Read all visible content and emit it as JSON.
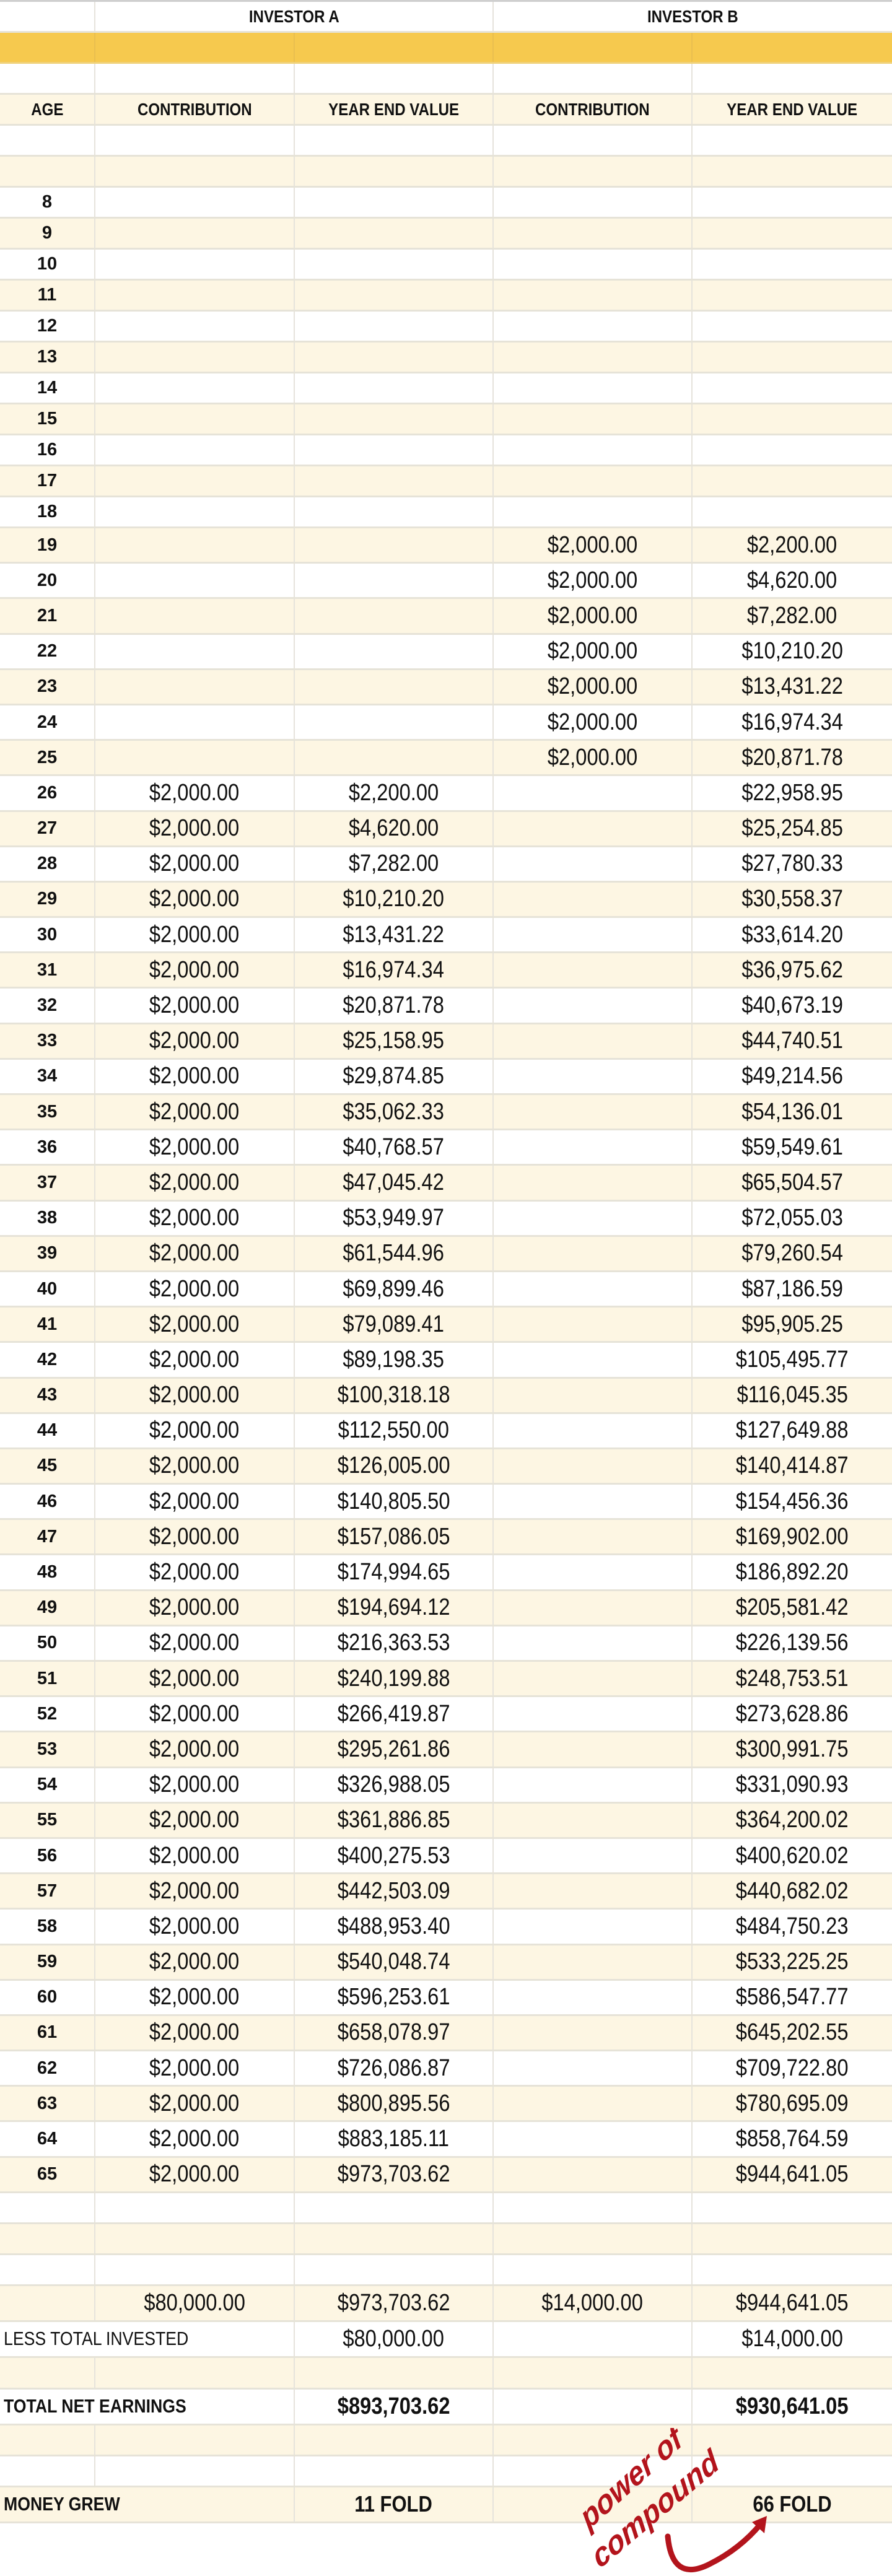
{
  "table": {
    "investor_a": "INVESTOR A",
    "investor_b": "INVESTOR B",
    "headers": [
      "AGE",
      "CONTRIBUTION",
      "YEAR END VALUE",
      "CONTRIBUTION",
      "YEAR END VALUE"
    ],
    "rows": [
      [
        "8",
        "",
        "",
        "",
        ""
      ],
      [
        "9",
        "",
        "",
        "",
        ""
      ],
      [
        "10",
        "",
        "",
        "",
        ""
      ],
      [
        "11",
        "",
        "",
        "",
        ""
      ],
      [
        "12",
        "",
        "",
        "",
        ""
      ],
      [
        "13",
        "",
        "",
        "",
        ""
      ],
      [
        "14",
        "",
        "",
        "",
        ""
      ],
      [
        "15",
        "",
        "",
        "",
        ""
      ],
      [
        "16",
        "",
        "",
        "",
        ""
      ],
      [
        "17",
        "",
        "",
        "",
        ""
      ],
      [
        "18",
        "",
        "",
        "",
        ""
      ],
      [
        "19",
        "",
        "",
        "$2,000.00",
        "$2,200.00"
      ],
      [
        "20",
        "",
        "",
        "$2,000.00",
        "$4,620.00"
      ],
      [
        "21",
        "",
        "",
        "$2,000.00",
        "$7,282.00"
      ],
      [
        "22",
        "",
        "",
        "$2,000.00",
        "$10,210.20"
      ],
      [
        "23",
        "",
        "",
        "$2,000.00",
        "$13,431.22"
      ],
      [
        "24",
        "",
        "",
        "$2,000.00",
        "$16,974.34"
      ],
      [
        "25",
        "",
        "",
        "$2,000.00",
        "$20,871.78"
      ],
      [
        "26",
        "$2,000.00",
        "$2,200.00",
        "",
        "$22,958.95"
      ],
      [
        "27",
        "$2,000.00",
        "$4,620.00",
        "",
        "$25,254.85"
      ],
      [
        "28",
        "$2,000.00",
        "$7,282.00",
        "",
        "$27,780.33"
      ],
      [
        "29",
        "$2,000.00",
        "$10,210.20",
        "",
        "$30,558.37"
      ],
      [
        "30",
        "$2,000.00",
        "$13,431.22",
        "",
        "$33,614.20"
      ],
      [
        "31",
        "$2,000.00",
        "$16,974.34",
        "",
        "$36,975.62"
      ],
      [
        "32",
        "$2,000.00",
        "$20,871.78",
        "",
        "$40,673.19"
      ],
      [
        "33",
        "$2,000.00",
        "$25,158.95",
        "",
        "$44,740.51"
      ],
      [
        "34",
        "$2,000.00",
        "$29,874.85",
        "",
        "$49,214.56"
      ],
      [
        "35",
        "$2,000.00",
        "$35,062.33",
        "",
        "$54,136.01"
      ],
      [
        "36",
        "$2,000.00",
        "$40,768.57",
        "",
        "$59,549.61"
      ],
      [
        "37",
        "$2,000.00",
        "$47,045.42",
        "",
        "$65,504.57"
      ],
      [
        "38",
        "$2,000.00",
        "$53,949.97",
        "",
        "$72,055.03"
      ],
      [
        "39",
        "$2,000.00",
        "$61,544.96",
        "",
        "$79,260.54"
      ],
      [
        "40",
        "$2,000.00",
        "$69,899.46",
        "",
        "$87,186.59"
      ],
      [
        "41",
        "$2,000.00",
        "$79,089.41",
        "",
        "$95,905.25"
      ],
      [
        "42",
        "$2,000.00",
        "$89,198.35",
        "",
        "$105,495.77"
      ],
      [
        "43",
        "$2,000.00",
        "$100,318.18",
        "",
        "$116,045.35"
      ],
      [
        "44",
        "$2,000.00",
        "$112,550.00",
        "",
        "$127,649.88"
      ],
      [
        "45",
        "$2,000.00",
        "$126,005.00",
        "",
        "$140,414.87"
      ],
      [
        "46",
        "$2,000.00",
        "$140,805.50",
        "",
        "$154,456.36"
      ],
      [
        "47",
        "$2,000.00",
        "$157,086.05",
        "",
        "$169,902.00"
      ],
      [
        "48",
        "$2,000.00",
        "$174,994.65",
        "",
        "$186,892.20"
      ],
      [
        "49",
        "$2,000.00",
        "$194,694.12",
        "",
        "$205,581.42"
      ],
      [
        "50",
        "$2,000.00",
        "$216,363.53",
        "",
        "$226,139.56"
      ],
      [
        "51",
        "$2,000.00",
        "$240,199.88",
        "",
        "$248,753.51"
      ],
      [
        "52",
        "$2,000.00",
        "$266,419.87",
        "",
        "$273,628.86"
      ],
      [
        "53",
        "$2,000.00",
        "$295,261.86",
        "",
        "$300,991.75"
      ],
      [
        "54",
        "$2,000.00",
        "$326,988.05",
        "",
        "$331,090.93"
      ],
      [
        "55",
        "$2,000.00",
        "$361,886.85",
        "",
        "$364,200.02"
      ],
      [
        "56",
        "$2,000.00",
        "$400,275.53",
        "",
        "$400,620.02"
      ],
      [
        "57",
        "$2,000.00",
        "$442,503.09",
        "",
        "$440,682.02"
      ],
      [
        "58",
        "$2,000.00",
        "$488,953.40",
        "",
        "$484,750.23"
      ],
      [
        "59",
        "$2,000.00",
        "$540,048.74",
        "",
        "$533,225.25"
      ],
      [
        "60",
        "$2,000.00",
        "$596,253.61",
        "",
        "$586,547.77"
      ],
      [
        "61",
        "$2,000.00",
        "$658,078.97",
        "",
        "$645,202.55"
      ],
      [
        "62",
        "$2,000.00",
        "$726,086.87",
        "",
        "$709,722.80"
      ],
      [
        "63",
        "$2,000.00",
        "$800,895.56",
        "",
        "$780,695.09"
      ],
      [
        "64",
        "$2,000.00",
        "$883,185.11",
        "",
        "$858,764.59"
      ],
      [
        "65",
        "$2,000.00",
        "$973,703.62",
        "",
        "$944,641.05"
      ]
    ]
  },
  "summary": {
    "totals": {
      "a_contribution": "$80,000.00",
      "a_value": "$973,703.62",
      "b_contribution": "$14,000.00",
      "b_value": "$944,641.05"
    },
    "less_invested": {
      "label": "LESS TOTAL INVESTED",
      "a": "$80,000.00",
      "b": "$14,000.00"
    },
    "net_earnings": {
      "label": "TOTAL NET EARNINGS",
      "a": "$893,703.62",
      "b": "$930,641.05"
    },
    "money_grew": {
      "label": "MONEY GREW",
      "a": "11 FOLD",
      "b": "66 FOLD"
    }
  },
  "annotation": {
    "line1": "power of",
    "line2": "compound",
    "color": "#b3141c",
    "icon": "curved-arrow-icon"
  },
  "colors": {
    "header_band": "#f6c94e",
    "stripe": "#fdf6e3"
  }
}
